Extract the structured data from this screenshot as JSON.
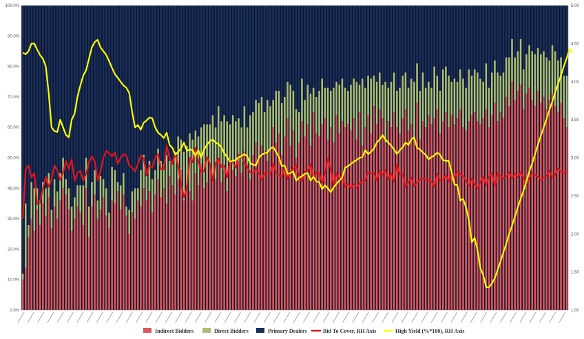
{
  "chart_data": {
    "type": "bar",
    "stacked": true,
    "title": "",
    "xlabel": "",
    "ylabel": "",
    "ylim": [
      0,
      100
    ],
    "y2lim": [
      1.0,
      5.0
    ],
    "yticks": [
      "0.0%",
      "10.0%",
      "20.0%",
      "30.0%",
      "40.0%",
      "50.0%",
      "60.0%",
      "70.0%",
      "80.0%",
      "90.0%",
      "100.0%"
    ],
    "y2ticks": [
      "1.00",
      "1.50",
      "2.00",
      "2.50",
      "3.00",
      "3.50",
      "4.00",
      "4.50",
      "5.00"
    ],
    "grid": false,
    "legend_position": "bottom",
    "colors": {
      "indirect": "#d9595c",
      "direct": "#a9bf76",
      "primary": "#1a2f5a",
      "btc": "#e4141a",
      "yield": "#ffff00"
    },
    "series": [
      {
        "name": "Indirect Bidders",
        "kind": "bar",
        "values": [
          10,
          14,
          24,
          30,
          26,
          33,
          28,
          35,
          31,
          37,
          27,
          34,
          30,
          36,
          40,
          38,
          33,
          26,
          30,
          34,
          32,
          28,
          40,
          24,
          34,
          38,
          30,
          33,
          37,
          31,
          27,
          36,
          35,
          39,
          33,
          38,
          31,
          25,
          32,
          30,
          36,
          34,
          40,
          36,
          39,
          32,
          38,
          43,
          37,
          40,
          35,
          44,
          41,
          38,
          43,
          46,
          36,
          41,
          39,
          36,
          45,
          41,
          48,
          40,
          42,
          47,
          44,
          43,
          50,
          42,
          46,
          39,
          48,
          46,
          44,
          49,
          45,
          52,
          48,
          43,
          51,
          55,
          50,
          54,
          52,
          49,
          53,
          60,
          55,
          58,
          51,
          57,
          63,
          54,
          59,
          50,
          55,
          62,
          57,
          61,
          54,
          65,
          58,
          57,
          61,
          63,
          56,
          60,
          55,
          64,
          58,
          62,
          60,
          61,
          59,
          63,
          56,
          65,
          54,
          60,
          64,
          58,
          67,
          61,
          66,
          63,
          55,
          62,
          60,
          65,
          60,
          58,
          63,
          66,
          59,
          61,
          57,
          68,
          56,
          62,
          60,
          64,
          61,
          63,
          66,
          58,
          62,
          65,
          60,
          64,
          61,
          63,
          66,
          60,
          59,
          62,
          64,
          65,
          62,
          61,
          63,
          66,
          60,
          64,
          68,
          62,
          65,
          63,
          70,
          67,
          75,
          69,
          72,
          74,
          66,
          71,
          73,
          69,
          67,
          72,
          68,
          70,
          66,
          69,
          71,
          67,
          65,
          68,
          63,
          60
        ]
      },
      {
        "name": "Direct Bidders",
        "kind": "bar",
        "values": [
          2,
          21,
          4,
          12,
          14,
          7,
          8,
          7,
          9,
          8,
          6,
          9,
          9,
          9,
          10,
          5,
          7,
          8,
          7,
          7,
          9,
          13,
          10,
          10,
          8,
          8,
          6,
          11,
          6,
          9,
          5,
          11,
          11,
          3,
          8,
          7,
          3,
          8,
          7,
          10,
          4,
          12,
          11,
          8,
          10,
          11,
          8,
          10,
          12,
          8,
          16,
          5,
          7,
          14,
          14,
          10,
          16,
          13,
          19,
          20,
          14,
          16,
          12,
          21,
          19,
          14,
          20,
          17,
          17,
          20,
          18,
          23,
          13,
          18,
          18,
          14,
          15,
          15,
          12,
          21,
          14,
          14,
          18,
          16,
          13,
          20,
          14,
          9,
          17,
          14,
          17,
          13,
          12,
          20,
          13,
          16,
          10,
          14,
          12,
          13,
          17,
          8,
          12,
          15,
          15,
          10,
          17,
          12,
          18,
          11,
          16,
          14,
          13,
          11,
          15,
          13,
          19,
          9,
          22,
          13,
          13,
          18,
          10,
          14,
          12,
          11,
          20,
          11,
          15,
          13,
          12,
          15,
          14,
          12,
          14,
          15,
          18,
          13,
          16,
          16,
          13,
          11,
          12,
          17,
          11,
          14,
          17,
          15,
          17,
          11,
          15,
          12,
          13,
          16,
          14,
          17,
          13,
          14,
          16,
          15,
          12,
          15,
          13,
          14,
          14,
          16,
          12,
          15,
          13,
          16,
          14,
          14,
          13,
          15,
          13,
          13,
          14,
          16,
          17,
          14,
          16,
          15,
          17,
          13,
          16,
          18,
          17,
          15,
          14,
          17
        ]
      },
      {
        "name": "Primary Dealers",
        "kind": "bar",
        "values": [
          88,
          65,
          72,
          58,
          60,
          60,
          64,
          58,
          60,
          55,
          67,
          57,
          61,
          55,
          50,
          57,
          60,
          66,
          63,
          59,
          59,
          59,
          50,
          66,
          58,
          54,
          64,
          56,
          57,
          60,
          68,
          53,
          54,
          58,
          59,
          55,
          66,
          67,
          61,
          60,
          60,
          54,
          49,
          56,
          51,
          57,
          54,
          47,
          51,
          52,
          49,
          51,
          52,
          48,
          43,
          44,
          48,
          46,
          42,
          44,
          41,
          43,
          40,
          39,
          39,
          39,
          36,
          40,
          33,
          38,
          36,
          38,
          39,
          36,
          38,
          37,
          40,
          33,
          40,
          36,
          35,
          31,
          32,
          30,
          35,
          31,
          33,
          31,
          28,
          28,
          32,
          30,
          25,
          26,
          28,
          34,
          35,
          24,
          31,
          26,
          29,
          27,
          30,
          28,
          24,
          27,
          27,
          28,
          27,
          25,
          26,
          24,
          27,
          28,
          26,
          24,
          25,
          26,
          24,
          27,
          23,
          24,
          23,
          25,
          22,
          26,
          25,
          27,
          25,
          22,
          28,
          27,
          23,
          22,
          27,
          24,
          25,
          19,
          28,
          22,
          27,
          25,
          27,
          20,
          23,
          28,
          21,
          20,
          23,
          25,
          24,
          25,
          21,
          24,
          27,
          21,
          23,
          21,
          22,
          24,
          25,
          19,
          27,
          22,
          18,
          22,
          23,
          22,
          17,
          17,
          11,
          17,
          15,
          11,
          21,
          16,
          13,
          15,
          16,
          14,
          16,
          15,
          17,
          18,
          13,
          15,
          18,
          17,
          23,
          23
        ]
      },
      {
        "name": "Bid To Cover, RH Axis",
        "kind": "line",
        "axis": "right",
        "values": [
          2.2,
          2.85,
          2.9,
          2.74,
          2.8,
          2.39,
          2.41,
          2.6,
          2.75,
          2.62,
          2.72,
          2.9,
          2.83,
          2.71,
          2.8,
          2.96,
          2.85,
          2.98,
          2.7,
          2.8,
          2.83,
          2.7,
          2.79,
          2.94,
          3.02,
          2.95,
          2.7,
          2.82,
          3.0,
          3.09,
          3.06,
          3.02,
          3.07,
          2.92,
          3.0,
          3.05,
          3.03,
          2.9,
          2.87,
          2.82,
          2.92,
          3.03,
          3.0,
          2.77,
          2.9,
          2.87,
          3.0,
          3.05,
          2.85,
          2.85,
          3.16,
          3.0,
          2.92,
          3.06,
          2.89,
          2.66,
          2.48,
          2.6,
          3.0,
          2.94,
          3.13,
          2.95,
          2.82,
          2.82,
          3.01,
          2.92,
          2.7,
          2.93,
          2.99,
          2.88,
          2.9,
          2.74,
          2.97,
          2.94,
          2.87,
          3.04,
          3.02,
          2.93,
          2.88,
          2.81,
          2.8,
          2.85,
          2.8,
          2.71,
          2.8,
          2.8,
          2.78,
          2.92,
          2.8,
          2.78,
          2.75,
          2.88,
          2.72,
          2.81,
          2.86,
          2.9,
          2.77,
          2.69,
          2.82,
          2.82,
          2.92,
          2.71,
          2.81,
          2.8,
          2.67,
          2.8,
          2.99,
          2.85,
          2.64,
          2.8,
          2.72,
          2.77,
          2.62,
          2.66,
          2.6,
          2.65,
          2.61,
          2.66,
          2.7,
          2.7,
          2.81,
          2.8,
          2.8,
          2.7,
          2.83,
          2.78,
          2.84,
          2.72,
          2.8,
          2.68,
          2.91,
          2.78,
          2.79,
          2.62,
          2.68,
          2.74,
          2.63,
          2.67,
          2.72,
          2.73,
          2.71,
          2.7,
          2.69,
          2.62,
          2.79,
          2.7,
          2.71,
          2.77,
          2.69,
          2.8,
          2.74,
          2.82,
          2.79,
          2.76,
          2.7,
          2.63,
          2.73,
          2.65,
          2.6,
          2.68,
          2.75,
          2.64,
          2.75,
          2.8,
          2.63,
          2.8,
          2.77,
          2.73,
          2.75,
          2.81,
          2.73,
          2.79,
          2.75,
          2.81,
          2.74,
          2.65,
          2.73,
          2.8,
          2.78,
          2.75,
          2.71,
          2.74,
          2.76,
          2.83,
          2.75,
          2.77,
          2.86,
          2.82,
          2.8,
          2.81
        ]
      },
      {
        "name": "High Yield (%*100), RH Axis",
        "kind": "line",
        "axis": "right",
        "values": [
          4.38,
          4.36,
          4.4,
          4.5,
          4.5,
          4.42,
          4.35,
          4.3,
          4.2,
          3.85,
          3.4,
          3.35,
          3.34,
          3.5,
          3.4,
          3.3,
          3.27,
          3.5,
          3.58,
          3.8,
          3.95,
          4.08,
          4.15,
          4.3,
          4.45,
          4.52,
          4.55,
          4.45,
          4.4,
          4.35,
          4.27,
          4.18,
          4.1,
          4.05,
          4.0,
          3.95,
          3.92,
          3.85,
          3.6,
          3.4,
          3.43,
          3.37,
          3.46,
          3.49,
          3.53,
          3.52,
          3.4,
          3.33,
          3.3,
          3.26,
          3.33,
          3.17,
          3.13,
          3.04,
          3.08,
          3.12,
          3.2,
          3.09,
          3.11,
          3.1,
          3.03,
          3.1,
          3.0,
          3.11,
          3.17,
          3.22,
          3.24,
          3.2,
          3.18,
          3.14,
          3.06,
          3.01,
          2.95,
          2.96,
          2.97,
          3.01,
          3.02,
          3.05,
          3.02,
          2.93,
          2.91,
          2.9,
          3.0,
          3.04,
          3.06,
          3.07,
          3.12,
          3.14,
          3.08,
          3.01,
          2.89,
          2.9,
          2.79,
          2.8,
          2.82,
          2.7,
          2.74,
          2.76,
          2.79,
          2.8,
          2.7,
          2.75,
          2.69,
          2.68,
          2.59,
          2.64,
          2.6,
          2.55,
          2.61,
          2.66,
          2.7,
          2.74,
          2.87,
          2.89,
          2.92,
          2.95,
          2.97,
          3.0,
          3.01,
          3.1,
          3.05,
          3.08,
          3.12,
          3.2,
          3.24,
          3.3,
          3.24,
          3.2,
          3.16,
          3.11,
          3.05,
          3.1,
          3.14,
          3.2,
          3.17,
          3.24,
          3.27,
          3.13,
          3.11,
          3.07,
          3.04,
          2.98,
          3.01,
          3.03,
          3.07,
          3.04,
          2.97,
          2.96,
          2.96,
          2.81,
          2.65,
          2.64,
          2.44,
          2.46,
          2.35,
          2.18,
          1.89,
          1.95,
          1.79,
          1.55,
          1.46,
          1.3,
          1.3,
          1.35,
          1.42,
          1.53,
          1.64,
          1.76,
          1.87,
          2.0,
          2.11,
          2.23,
          2.35,
          2.46,
          2.57,
          2.69,
          2.82,
          2.93,
          3.05,
          3.17,
          3.29,
          3.4,
          3.51,
          3.63,
          3.74,
          3.86,
          3.97,
          4.08,
          4.2,
          4.31,
          4.43,
          4.38
        ]
      }
    ],
    "x_tick_count": 56
  }
}
